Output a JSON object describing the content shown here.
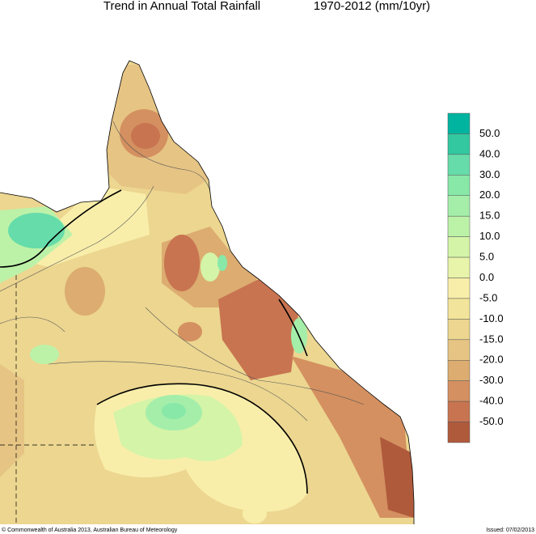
{
  "header": {
    "title": "Trend in Annual Total Rainfall",
    "period": "1970-2012 (mm/10yr)"
  },
  "legend": {
    "labels": [
      "50.0",
      "40.0",
      "30.0",
      "20.0",
      "15.0",
      "10.0",
      "5.0",
      "0.0",
      "-5.0",
      "-10.0",
      "-15.0",
      "-20.0",
      "-30.0",
      "-40.0",
      "-50.0"
    ],
    "colors": [
      "#00b4a0",
      "#33c8a0",
      "#66dcaa",
      "#88e8a8",
      "#a4eeaa",
      "#bcf2a8",
      "#d4f4a8",
      "#e8f4aa",
      "#f8eeaa",
      "#f2e49a",
      "#ecd690",
      "#e6c484",
      "#dcac70",
      "#d49060",
      "#c87450",
      "#b05a3c"
    ]
  },
  "footer": {
    "copyright": "© Commonwealth of Australia 2013, Australian Bureau of Meteorology",
    "issued": "Issued: 07/02/2013"
  }
}
